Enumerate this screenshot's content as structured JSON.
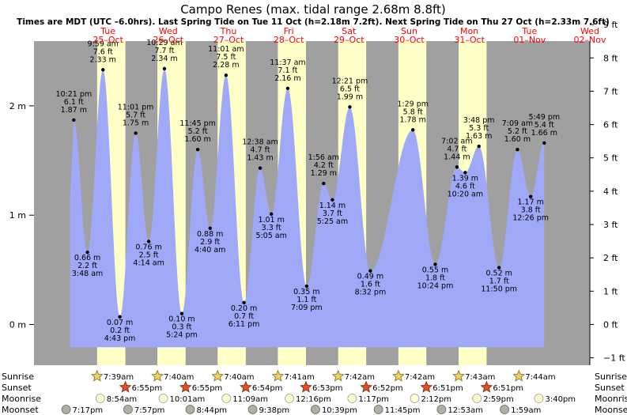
{
  "chart_data": {
    "type": "area",
    "title": "Campo Renes (max. tidal range 2.68m 8.8ft)",
    "subtitle": "Times are MDT (UTC –6.0hrs). Last Spring Tide on Tue 11 Oct (h=2.18m 7.2ft). Next Spring Tide on Thu 27 Oct (h=2.33m 7.6ft)",
    "colors": {
      "water": "#a0a8f8",
      "day": "#ffffc8",
      "night": "#a0a0a0",
      "day_label": "#ff0000",
      "text": "#000000"
    },
    "days": [
      {
        "weekday": "Tue",
        "date": "25–Oct"
      },
      {
        "weekday": "Wed",
        "date": "26–Oct"
      },
      {
        "weekday": "Thu",
        "date": "27–Oct"
      },
      {
        "weekday": "Fri",
        "date": "28–Oct"
      },
      {
        "weekday": "Sat",
        "date": "29–Oct"
      },
      {
        "weekday": "Sun",
        "date": "30–Oct"
      },
      {
        "weekday": "Mon",
        "date": "31–Oct"
      },
      {
        "weekday": "Tue",
        "date": "01–Nov"
      },
      {
        "weekday": "Wed",
        "date": "02–Nov"
      }
    ],
    "x_range_hours": [
      -17.5,
      204
    ],
    "ylim_m": [
      -0.52,
      2.95
    ],
    "y_ticks_m": [
      "2 m",
      "1 m",
      "0 m"
    ],
    "y_ticks_ft": [
      "9 ft",
      "8 ft",
      "7 ft",
      "6 ft",
      "5 ft",
      "4 ft",
      "3 ft",
      "2 ft",
      "1 ft",
      "0 ft",
      "−1 ft"
    ],
    "tides": [
      {
        "t": -1.65,
        "h": 1.87,
        "type": "high",
        "lines": [
          "10:21 pm",
          "6.1 ft",
          "1.87 m"
        ]
      },
      {
        "t": 3.8,
        "h": 0.66,
        "type": "low",
        "lines": [
          "0.66 m",
          "2.2 ft",
          "3:48 am"
        ]
      },
      {
        "t": 9.98,
        "h": 2.33,
        "type": "high",
        "lines": [
          "9:59 am",
          "7.6 ft",
          "2.33 m"
        ]
      },
      {
        "t": 16.72,
        "h": 0.07,
        "type": "low",
        "lines": [
          "0.07 m",
          "0.2 ft",
          "4:43 pm"
        ]
      },
      {
        "t": 23.02,
        "h": 1.75,
        "type": "high",
        "lines": [
          "11:01 pm",
          "5.7 ft",
          "1.75 m"
        ]
      },
      {
        "t": 28.23,
        "h": 0.76,
        "type": "low",
        "lines": [
          "0.76 m",
          "2.5 ft",
          "4:14 am"
        ]
      },
      {
        "t": 34.48,
        "h": 2.34,
        "type": "high",
        "lines": [
          "10:29 am",
          "7.7 ft",
          "2.34 m"
        ]
      },
      {
        "t": 41.4,
        "h": 0.1,
        "type": "low",
        "lines": [
          "0.10 m",
          "0.3 ft",
          "5:24 pm"
        ]
      },
      {
        "t": 47.75,
        "h": 1.6,
        "type": "high",
        "lines": [
          "11:45 pm",
          "5.2 ft",
          "1.60 m"
        ]
      },
      {
        "t": 52.67,
        "h": 0.88,
        "type": "low",
        "lines": [
          "0.88 m",
          "2.9 ft",
          "4:40 am"
        ]
      },
      {
        "t": 59.02,
        "h": 2.28,
        "type": "high",
        "lines": [
          "11:01 am",
          "7.5 ft",
          "2.28 m"
        ]
      },
      {
        "t": 66.18,
        "h": 0.2,
        "type": "low",
        "lines": [
          "0.20 m",
          "0.7 ft",
          "6:11 pm"
        ]
      },
      {
        "t": 72.63,
        "h": 1.43,
        "type": "high",
        "lines": [
          "12:38 am",
          "4.7 ft",
          "1.43 m"
        ]
      },
      {
        "t": 77.08,
        "h": 1.01,
        "type": "low",
        "lines": [
          "1.01 m",
          "3.3 ft",
          "5:05 am"
        ]
      },
      {
        "t": 83.62,
        "h": 2.16,
        "type": "high",
        "lines": [
          "11:37 am",
          "7.1 ft",
          "2.16 m"
        ]
      },
      {
        "t": 91.15,
        "h": 0.35,
        "type": "low",
        "lines": [
          "0.35 m",
          "1.1 ft",
          "7:09 pm"
        ]
      },
      {
        "t": 97.93,
        "h": 1.29,
        "type": "high",
        "lines": [
          "1:56 am",
          "4.2 ft",
          "1.29 m"
        ]
      },
      {
        "t": 101.42,
        "h": 1.14,
        "type": "low",
        "lines": [
          "1.14 m",
          "3.7 ft",
          "5:25 am"
        ]
      },
      {
        "t": 108.35,
        "h": 1.99,
        "type": "high",
        "lines": [
          "12:21 pm",
          "6.5 ft",
          "1.99 m"
        ]
      },
      {
        "t": 116.53,
        "h": 0.49,
        "type": "low",
        "lines": [
          "0.49 m",
          "1.6 ft",
          "8:32 pm"
        ]
      },
      {
        "t": 133.48,
        "h": 1.78,
        "type": "high",
        "lines": [
          "1:29 pm",
          "5.8 ft",
          "1.78 m"
        ]
      },
      {
        "t": 142.4,
        "h": 0.55,
        "type": "low",
        "lines": [
          "0.55 m",
          "1.8 ft",
          "10:24 pm"
        ]
      },
      {
        "t": 151.03,
        "h": 1.44,
        "type": "high",
        "lines": [
          "7:02 am",
          "4.7 ft",
          "1.44 m"
        ]
      },
      {
        "t": 154.33,
        "h": 1.39,
        "type": "low",
        "lines": [
          "1.39 m",
          "4.6 ft",
          "10:20 am"
        ]
      },
      {
        "t": 159.8,
        "h": 1.63,
        "type": "high",
        "lines": [
          "3:48 pm",
          "5.3 ft",
          "1.63 m"
        ]
      },
      {
        "t": 167.83,
        "h": 0.52,
        "type": "low",
        "lines": [
          "0.52 m",
          "1.7 ft",
          "11:50 pm"
        ]
      },
      {
        "t": 175.15,
        "h": 1.6,
        "type": "high",
        "lines": [
          "7:09 am",
          "5.2 ft",
          "1.60 m"
        ]
      },
      {
        "t": 180.43,
        "h": 1.17,
        "type": "low",
        "lines": [
          "1.17 m",
          "3.8 ft",
          "12:26 pm"
        ]
      },
      {
        "t": 185.82,
        "h": 1.66,
        "type": "high",
        "lines": [
          "5:49 pm",
          "5.4 ft",
          "1.66 m"
        ]
      }
    ],
    "sunrise_hours": [
      7.65,
      31.67,
      55.67,
      79.68,
      103.7,
      127.7,
      151.72,
      175.73
    ],
    "sunset_hours": [
      18.92,
      42.92,
      66.9,
      90.88,
      114.87,
      138.85,
      162.85
    ],
    "sun_times": {
      "sunrise": [
        "7:39am",
        "7:40am",
        "7:40am",
        "7:41am",
        "7:42am",
        "7:42am",
        "7:43am",
        "7:44am"
      ],
      "sunset": [
        "6:55pm",
        "6:55pm",
        "6:54pm",
        "6:53pm",
        "6:52pm",
        "6:51pm",
        "6:51pm"
      ],
      "moonrise": [
        "8:54am",
        "10:01am",
        "11:09am",
        "12:16pm",
        "1:17pm",
        "2:12pm",
        "2:59pm",
        "3:40pm"
      ],
      "moonset": [
        "7:17pm",
        "7:57pm",
        "8:44pm",
        "9:38pm",
        "10:39pm",
        "11:45pm",
        "12:53am",
        "1:59am"
      ]
    },
    "sun_rows": {
      "sunrise": {
        "label": "Sunrise",
        "hours": [
          7.65,
          31.67,
          55.67,
          79.68,
          103.7,
          127.7,
          151.72,
          175.73
        ]
      },
      "sunset": {
        "label": "Sunset",
        "hours": [
          18.92,
          42.92,
          66.9,
          90.88,
          114.87,
          138.85,
          162.85
        ]
      },
      "moonrise": {
        "label": "Moonrise",
        "hours": [
          8.9,
          34.02,
          59.15,
          84.27,
          109.28,
          134.2,
          159.0,
          183.67
        ]
      },
      "moonset": {
        "label": "Moonset",
        "hours": [
          -4.72,
          19.95,
          44.73,
          69.63,
          94.65,
          119.75,
          144.88,
          170.0
        ]
      }
    }
  }
}
